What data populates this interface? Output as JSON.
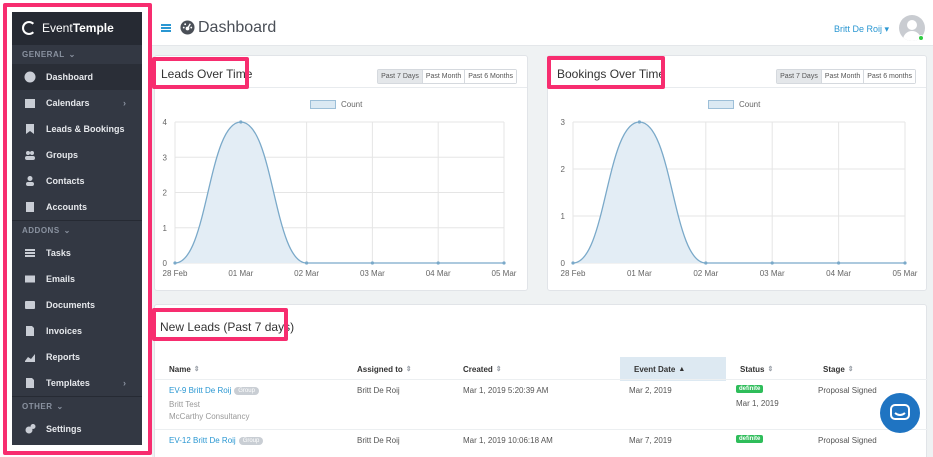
{
  "brand": {
    "part1": "Event",
    "part2": "Temple"
  },
  "header": {
    "title": "Dashboard",
    "user": "Britt De Roij"
  },
  "sidebar": {
    "sections": [
      {
        "label": "GENERAL",
        "items": [
          {
            "label": "Dashboard",
            "icon": "dashboard-icon",
            "active": true
          },
          {
            "label": "Calendars",
            "icon": "calendar-icon",
            "submenu": true
          },
          {
            "label": "Leads & Bookings",
            "icon": "bookmark-icon"
          },
          {
            "label": "Groups",
            "icon": "groups-icon"
          },
          {
            "label": "Contacts",
            "icon": "contact-icon"
          },
          {
            "label": "Accounts",
            "icon": "building-icon"
          }
        ]
      },
      {
        "label": "ADDONS",
        "items": [
          {
            "label": "Tasks",
            "icon": "tasks-icon"
          },
          {
            "label": "Emails",
            "icon": "envelope-icon"
          },
          {
            "label": "Documents",
            "icon": "document-icon"
          },
          {
            "label": "Invoices",
            "icon": "invoice-icon"
          },
          {
            "label": "Reports",
            "icon": "chart-icon"
          },
          {
            "label": "Templates",
            "icon": "template-icon",
            "submenu": true
          }
        ]
      },
      {
        "label": "OTHER",
        "items": [
          {
            "label": "Settings",
            "icon": "gears-icon"
          }
        ]
      }
    ]
  },
  "range_buttons": {
    "leads": [
      "Past 7 Days",
      "Past Month",
      "Past 6 Months"
    ],
    "bookings": [
      "Past 7 Days",
      "Past Month",
      "Past 6 months"
    ]
  },
  "chart_data": [
    {
      "type": "area",
      "title": "Leads Over Time",
      "categories": [
        "28 Feb",
        "01 Mar",
        "02 Mar",
        "03 Mar",
        "04 Mar",
        "05 Mar"
      ],
      "series": [
        {
          "name": "Count",
          "values": [
            0,
            4,
            0,
            0,
            0,
            0
          ]
        }
      ],
      "ylim": [
        0,
        4
      ],
      "yticks": [
        0,
        1,
        2,
        3,
        4
      ],
      "grid": true,
      "legend": "top-center",
      "colors": {
        "line": "#7aa9c9",
        "fill": "#e3edf5"
      }
    },
    {
      "type": "area",
      "title": "Bookings Over Time",
      "categories": [
        "28 Feb",
        "01 Mar",
        "02 Mar",
        "03 Mar",
        "04 Mar",
        "05 Mar"
      ],
      "series": [
        {
          "name": "Count",
          "values": [
            0,
            3,
            0,
            0,
            0,
            0
          ]
        }
      ],
      "ylim": [
        0,
        3
      ],
      "yticks": [
        0,
        1,
        2,
        3
      ],
      "grid": true,
      "legend": "top-center",
      "colors": {
        "line": "#7aa9c9",
        "fill": "#e3edf5"
      }
    }
  ],
  "leads": {
    "title": "New Leads (Past 7 days)",
    "columns": [
      "Name",
      "Assigned to",
      "Created",
      "Event Date",
      "Status",
      "Stage"
    ],
    "rows": [
      {
        "name": "EV-9 Britt De Roij",
        "tag": "Group",
        "sub1": "Britt Test",
        "sub2": "McCarthy Consultancy",
        "assigned": "Britt De Roij",
        "created": "Mar 1, 2019 5:20:39 AM",
        "event_date": "Mar 2, 2019",
        "status": "definite",
        "status_date": "Mar 1, 2019",
        "stage": "Proposal Signed"
      },
      {
        "name": "EV-12 Britt De Roij",
        "tag": "Group",
        "assigned": "Britt De Roij",
        "created": "Mar 1, 2019 10:06:18 AM",
        "event_date": "Mar 7, 2019",
        "status": "definite",
        "stage": "Proposal Signed"
      }
    ]
  }
}
